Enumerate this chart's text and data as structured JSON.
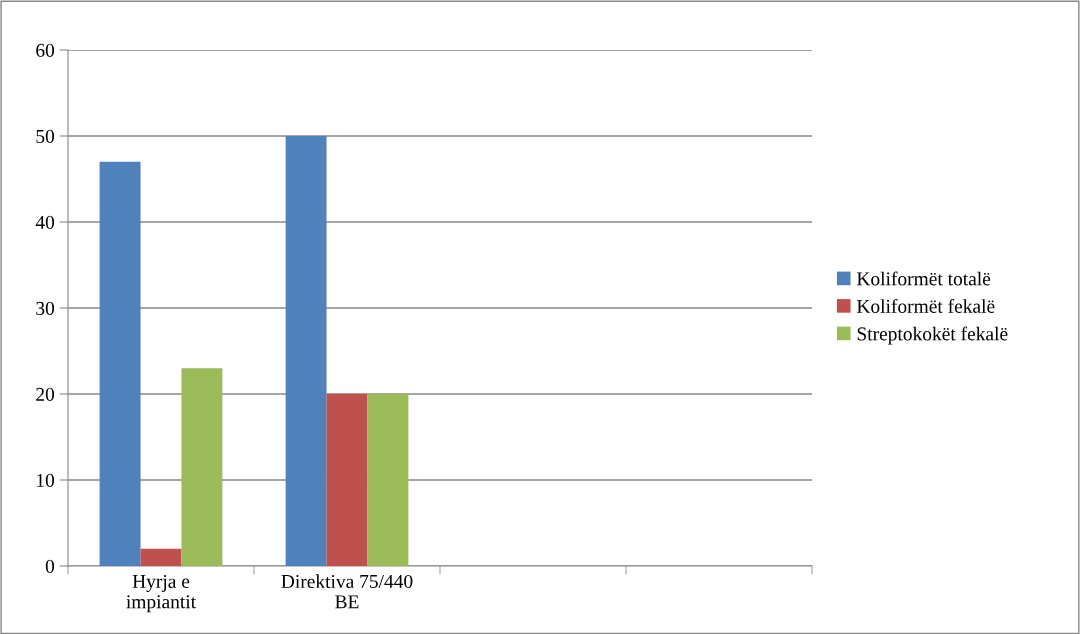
{
  "chart_data": {
    "type": "bar",
    "categories": [
      "Hyrja e impiantit",
      "Direktiva 75/440 BE",
      null,
      null
    ],
    "series": [
      {
        "name": "Koliformët totalë",
        "color": "#4f81bd",
        "values": [
          47,
          50,
          null,
          null
        ]
      },
      {
        "name": "Koliformët fekalë",
        "color": "#c0504d",
        "values": [
          2,
          20,
          null,
          null
        ]
      },
      {
        "name": "Streptokokët fekalë",
        "color": "#9bbb59",
        "values": [
          23,
          20,
          null,
          null
        ]
      }
    ],
    "ylim": [
      0,
      60
    ],
    "yticks": [
      0,
      10,
      20,
      30,
      40,
      50,
      60
    ],
    "grid": "y",
    "legend": "right"
  }
}
